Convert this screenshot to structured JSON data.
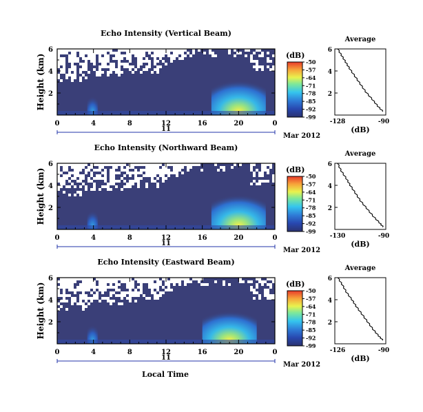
{
  "figure": {
    "xlabel": "Local Time",
    "date_label": "Mar 2012",
    "day_label": "11",
    "colorbar_unit": "(dB)",
    "colorbar_ticks": [
      -50,
      -57,
      -64,
      -71,
      -78,
      -85,
      -92,
      -99
    ],
    "colors": {
      "background_field": "#3a3f78",
      "colormap": [
        "#2a3270",
        "#2848b0",
        "#2f7ed8",
        "#35c5ee",
        "#7ee89a",
        "#e9f24e",
        "#f7a43a",
        "#e83a2a"
      ]
    }
  },
  "panels": [
    {
      "title": "Echo Intensity (Vertical Beam)",
      "ylabel": "Height (km)",
      "avg_title": "Average",
      "avg_xlabel": "(dB)",
      "avg_xticks": [
        "-128",
        "-90"
      ],
      "avg_yticks": [
        "6",
        "4",
        "2"
      ],
      "yticks": [
        "6",
        "4",
        "2"
      ],
      "xticks": [
        "0",
        "4",
        "8",
        "12",
        "16",
        "20",
        "0"
      ]
    },
    {
      "title": "Echo Intensity (Northward Beam)",
      "ylabel": "Height (km)",
      "avg_title": "Average",
      "avg_xlabel": "(dB)",
      "avg_xticks": [
        "-130",
        "-90"
      ],
      "avg_yticks": [
        "6",
        "4",
        "2"
      ],
      "yticks": [
        "6",
        "4",
        "2"
      ],
      "xticks": [
        "0",
        "4",
        "8",
        "12",
        "16",
        "20",
        "0"
      ]
    },
    {
      "title": "Echo Intensity (Eastward Beam)",
      "ylabel": "Height (km)",
      "avg_title": "Average",
      "avg_xlabel": "(dB)",
      "avg_xticks": [
        "-126",
        "-90"
      ],
      "avg_yticks": [
        "6",
        "4",
        "2"
      ],
      "yticks": [
        "6",
        "4",
        "2"
      ],
      "xticks": [
        "0",
        "4",
        "8",
        "12",
        "16",
        "20",
        "0"
      ]
    }
  ],
  "chart_data": [
    {
      "type": "heatmap",
      "title": "Echo Intensity (Vertical Beam)",
      "xlabel": "",
      "ylabel": "Height (km)",
      "x_range_hours": [
        0,
        24
      ],
      "y_range_km": [
        0,
        6
      ],
      "clim_db": [
        -99,
        -50
      ],
      "note_features": [
        {
          "x_hours": [
            17,
            23
          ],
          "y_km": [
            0,
            3.5
          ],
          "peak_db": -57
        },
        {
          "x_hours": [
            3.3,
            4.5
          ],
          "y_km": [
            0,
            1.8
          ],
          "peak_db": -85
        }
      ]
    },
    {
      "type": "line",
      "title": "Average",
      "xlabel": "(dB)",
      "xlim": [
        -128,
        -90
      ],
      "ylim": [
        0,
        6
      ],
      "points": [
        {
          "db": -126,
          "km": 6.0
        },
        {
          "db": -123,
          "km": 5.4
        },
        {
          "db": -120,
          "km": 4.8
        },
        {
          "db": -117,
          "km": 4.2
        },
        {
          "db": -113,
          "km": 3.5
        },
        {
          "db": -109,
          "km": 2.8
        },
        {
          "db": -105,
          "km": 2.1
        },
        {
          "db": -100,
          "km": 1.4
        },
        {
          "db": -96,
          "km": 0.8
        },
        {
          "db": -92,
          "km": 0.3
        }
      ]
    },
    {
      "type": "heatmap",
      "title": "Echo Intensity (Northward Beam)",
      "xlabel": "",
      "ylabel": "Height (km)",
      "x_range_hours": [
        0,
        24
      ],
      "y_range_km": [
        0,
        6
      ],
      "clim_db": [
        -99,
        -50
      ],
      "note_features": [
        {
          "x_hours": [
            17,
            23
          ],
          "y_km": [
            0,
            3.5
          ],
          "peak_db": -57
        },
        {
          "x_hours": [
            3.3,
            4.5
          ],
          "y_km": [
            0,
            1.8
          ],
          "peak_db": -85
        }
      ]
    },
    {
      "type": "line",
      "title": "Average",
      "xlabel": "(dB)",
      "xlim": [
        -130,
        -90
      ],
      "ylim": [
        0,
        6
      ],
      "points": [
        {
          "db": -128,
          "km": 6.0
        },
        {
          "db": -125,
          "km": 5.3
        },
        {
          "db": -121,
          "km": 4.6
        },
        {
          "db": -118,
          "km": 4.0
        },
        {
          "db": -114,
          "km": 3.3
        },
        {
          "db": -110,
          "km": 2.6
        },
        {
          "db": -105,
          "km": 1.9
        },
        {
          "db": -100,
          "km": 1.2
        },
        {
          "db": -95,
          "km": 0.6
        },
        {
          "db": -92,
          "km": 0.2
        }
      ]
    },
    {
      "type": "heatmap",
      "title": "Echo Intensity (Eastward Beam)",
      "xlabel": "Local Time",
      "ylabel": "Height (km)",
      "x_range_hours": [
        0,
        24
      ],
      "y_range_km": [
        0,
        6
      ],
      "clim_db": [
        -99,
        -50
      ],
      "note_features": [
        {
          "x_hours": [
            16,
            22
          ],
          "y_km": [
            0,
            3.3
          ],
          "peak_db": -57
        },
        {
          "x_hours": [
            3.3,
            4.5
          ],
          "y_km": [
            0,
            1.8
          ],
          "peak_db": -85
        }
      ]
    },
    {
      "type": "line",
      "title": "Average",
      "xlabel": "(dB)",
      "xlim": [
        -126,
        -90
      ],
      "ylim": [
        0,
        6
      ],
      "points": [
        {
          "db": -124,
          "km": 6.0
        },
        {
          "db": -121,
          "km": 5.4
        },
        {
          "db": -118,
          "km": 4.7
        },
        {
          "db": -114,
          "km": 4.0
        },
        {
          "db": -111,
          "km": 3.4
        },
        {
          "db": -107,
          "km": 2.7
        },
        {
          "db": -103,
          "km": 2.0
        },
        {
          "db": -99,
          "km": 1.3
        },
        {
          "db": -95,
          "km": 0.7
        },
        {
          "db": -92,
          "km": 0.3
        }
      ]
    }
  ]
}
